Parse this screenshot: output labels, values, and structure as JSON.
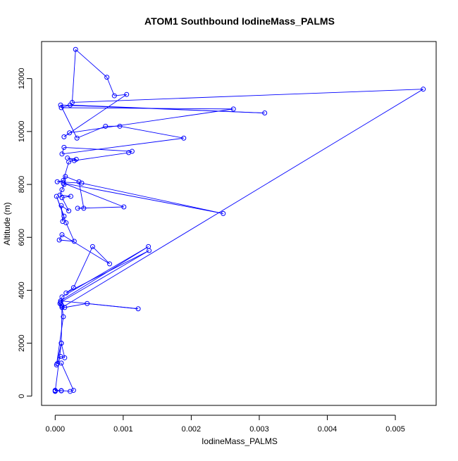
{
  "chart_data": {
    "type": "line",
    "title": "ATOM1 Southbound IodineMass_PALMS",
    "xlabel": "IodineMass_PALMS",
    "ylabel": "Altitude (m)",
    "xlim": [
      -0.0002,
      0.0056
    ],
    "ylim": [
      -350,
      13400
    ],
    "x_ticks": [
      0.0,
      0.001,
      0.002,
      0.003,
      0.004,
      0.005
    ],
    "x_tick_labels": [
      "0.000",
      "0.001",
      "0.002",
      "0.003",
      "0.004",
      "0.005"
    ],
    "y_ticks": [
      0,
      2000,
      4000,
      6000,
      8000,
      10000,
      12000
    ],
    "y_tick_labels": [
      "0",
      "2000",
      "4000",
      "6000",
      "8000",
      "10000",
      "12000"
    ],
    "grid": false,
    "legend": "none",
    "marker": "open-circle",
    "series": [
      {
        "color": "#0000ff",
        "x": [
          0.0,
          9e-05,
          0.0,
          9e-05,
          0.00022,
          0.00027,
          9e-05,
          3e-05,
          8e-05,
          0.00014,
          9e-05,
          2e-05,
          0.00012,
          0.0001,
          7e-05,
          9e-05,
          0.00014,
          0.00047,
          0.00122,
          8e-05,
          0.00137,
          0.0001,
          8e-05,
          0.00138,
          0.00016,
          0.00027,
          0.00055,
          0.0008,
          0.0001,
          6e-05,
          0.00028,
          0.00016,
          2e-05,
          0.00013,
          0.00011,
          9e-05,
          0.0002,
          0.0001,
          0.00023,
          7e-05,
          0.0001,
          0.00013,
          0.00015,
          0.00035,
          0.00042,
          0.00033,
          0.00101,
          0.00012,
          0.00247,
          0.00039,
          3e-05,
          0.00012,
          0.0002,
          0.00031,
          0.00018,
          0.00028,
          0.00108,
          0.00113,
          0.00013,
          0.0001,
          0.00189,
          0.00095,
          0.00074,
          0.00032,
          8e-05,
          0.00308,
          0.00022,
          9e-05,
          0.00262,
          0.00021,
          0.00013,
          0.00105,
          0.00087,
          0.00076,
          0.0003,
          0.00025,
          0.00541,
          0.0001,
          9e-05,
          0.0
        ],
        "y": [
          200,
          200,
          220,
          210,
          180,
          220,
          1250,
          1230,
          1500,
          1450,
          2000,
          1180,
          3000,
          3400,
          3500,
          3450,
          3350,
          3500,
          3300,
          3600,
          5650,
          3750,
          3550,
          5500,
          3900,
          4100,
          5650,
          5000,
          6100,
          5900,
          5850,
          6550,
          7550,
          6800,
          6600,
          7200,
          7000,
          7500,
          7550,
          7600,
          7800,
          8000,
          8300,
          8100,
          7100,
          7100,
          7150,
          8050,
          6900,
          8050,
          8100,
          8150,
          8850,
          8950,
          9000,
          8900,
          9200,
          9250,
          9400,
          9150,
          9750,
          10200,
          10200,
          9750,
          11000,
          10700,
          11000,
          10900,
          10850,
          9950,
          9800,
          11400,
          11350,
          12050,
          13100,
          11100,
          11600,
          3350,
          2000,
          180
        ]
      }
    ]
  }
}
